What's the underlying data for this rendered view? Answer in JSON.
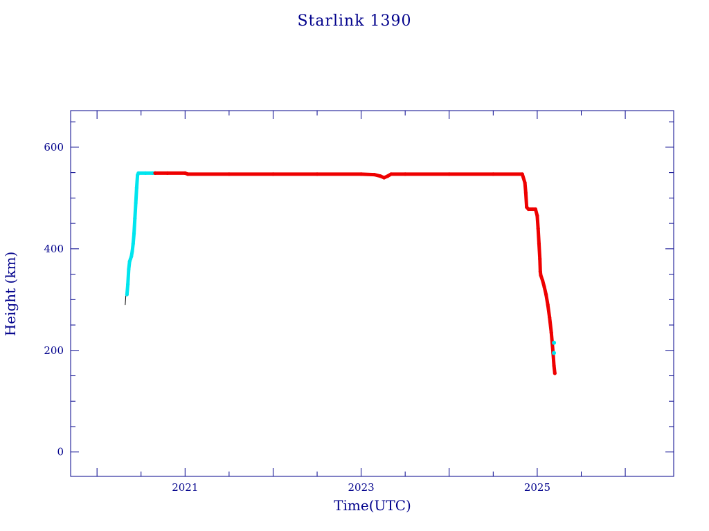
{
  "chart_data": {
    "type": "line",
    "title": "Starlink 1390",
    "xlabel": "Time(UTC)",
    "ylabel": "Height (km)",
    "xlim": [
      2019.7,
      2026.55
    ],
    "ylim": [
      -48,
      672
    ],
    "x_ticks": [
      2021,
      2023,
      2025
    ],
    "x_tick_labels": [
      "2021",
      "2023",
      "2025"
    ],
    "y_ticks": [
      0,
      200,
      400,
      600
    ],
    "y_tick_labels": [
      "0",
      "200",
      "400",
      "600"
    ],
    "grid": false,
    "colors": {
      "frame": "#00008b",
      "text": "#00008b",
      "series_a": "#00e5ee",
      "series_b": "#ee0000",
      "trace": "#000000"
    },
    "series": [
      {
        "color": "#00e5ee",
        "style": "thick",
        "points": [
          [
            2020.34,
            310
          ],
          [
            2020.35,
            330
          ],
          [
            2020.36,
            360
          ],
          [
            2020.37,
            375
          ],
          [
            2020.38,
            380
          ],
          [
            2020.39,
            385
          ],
          [
            2020.4,
            395
          ],
          [
            2020.41,
            410
          ],
          [
            2020.42,
            430
          ],
          [
            2020.43,
            460
          ],
          [
            2020.44,
            490
          ],
          [
            2020.45,
            520
          ],
          [
            2020.46,
            545
          ],
          [
            2020.47,
            549
          ],
          [
            2020.55,
            549
          ],
          [
            2020.63,
            549
          ],
          [
            2020.66,
            549
          ]
        ]
      },
      {
        "color": "#ee0000",
        "style": "thick",
        "points": [
          [
            2020.66,
            549
          ],
          [
            2020.8,
            549
          ],
          [
            2021.0,
            549
          ],
          [
            2021.03,
            547
          ],
          [
            2021.5,
            547
          ],
          [
            2022.0,
            547
          ],
          [
            2022.5,
            547
          ],
          [
            2023.0,
            547
          ],
          [
            2023.15,
            546
          ],
          [
            2023.22,
            543
          ],
          [
            2023.26,
            540
          ],
          [
            2023.3,
            543
          ],
          [
            2023.34,
            547
          ],
          [
            2023.5,
            547
          ],
          [
            2024.0,
            547
          ],
          [
            2024.5,
            547
          ],
          [
            2024.83,
            547
          ],
          [
            2024.86,
            530
          ],
          [
            2024.87,
            510
          ],
          [
            2024.88,
            482
          ],
          [
            2024.9,
            478
          ],
          [
            2024.95,
            478
          ],
          [
            2024.98,
            478
          ],
          [
            2025.0,
            465
          ],
          [
            2025.01,
            440
          ],
          [
            2025.02,
            410
          ],
          [
            2025.03,
            380
          ],
          [
            2025.035,
            355
          ],
          [
            2025.04,
            348
          ],
          [
            2025.06,
            338
          ],
          [
            2025.08,
            325
          ],
          [
            2025.1,
            310
          ],
          [
            2025.12,
            290
          ],
          [
            2025.14,
            265
          ],
          [
            2025.16,
            235
          ],
          [
            2025.17,
            215
          ],
          [
            2025.18,
            195
          ],
          [
            2025.19,
            170
          ],
          [
            2025.2,
            155
          ]
        ]
      },
      {
        "color": "#00e5ee",
        "style": "markers",
        "points": [
          [
            2025.19,
            215
          ],
          [
            2025.19,
            195
          ]
        ]
      },
      {
        "color": "#000000",
        "style": "thin",
        "points": [
          [
            2020.32,
            290
          ],
          [
            2020.33,
            315
          ],
          [
            2020.34,
            330
          ],
          [
            2020.39,
            385
          ],
          [
            2020.42,
            420
          ]
        ]
      }
    ]
  }
}
